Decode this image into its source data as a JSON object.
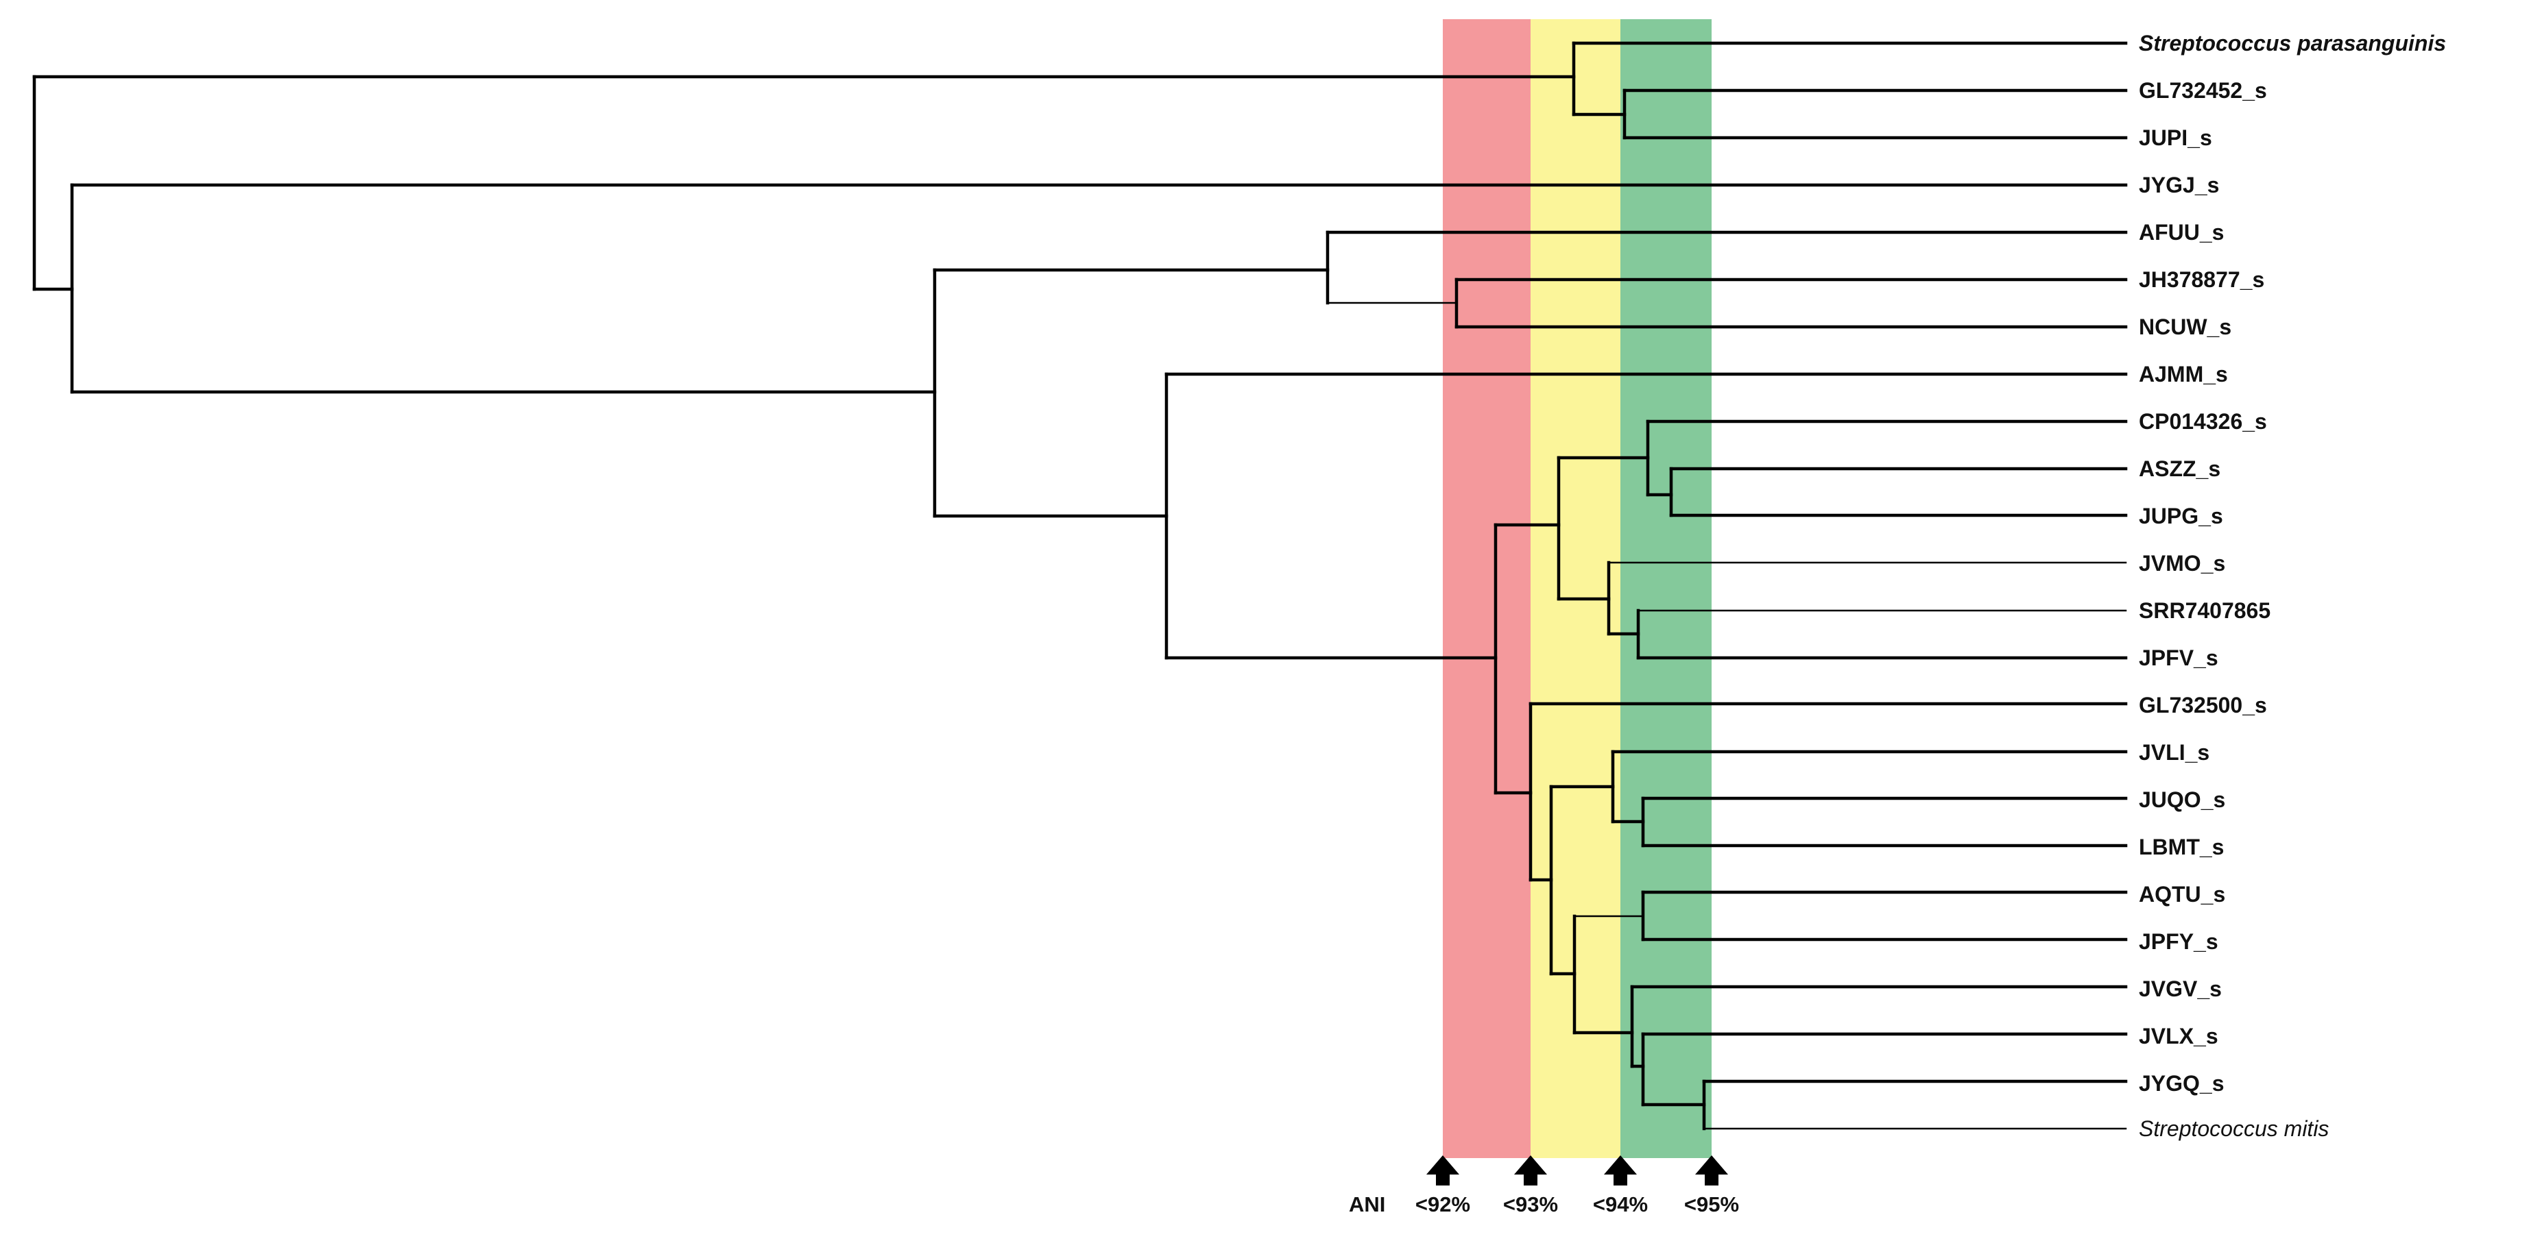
{
  "figure": {
    "type": "phylogenetic-tree",
    "ani_label": "ANI",
    "colors": {
      "band_92": "#f4999c",
      "band_93": "#fbf59a",
      "band_94": "#84c99b",
      "line": "#000000"
    },
    "thresholds": [
      {
        "label": "<92%",
        "color_key": "band_92"
      },
      {
        "label": "<93%",
        "color_key": "band_93"
      },
      {
        "label": "<94%",
        "color_key": "band_94"
      },
      {
        "label": "<95%",
        "color_key": null
      }
    ],
    "taxa": [
      {
        "label": "Streptococcus parasanguinis",
        "italic": true,
        "bold": true
      },
      {
        "label": "GL732452_s"
      },
      {
        "label": "JUPI_s"
      },
      {
        "label": "JYGJ_s"
      },
      {
        "label": "AFUU_s"
      },
      {
        "label": "JH378877_s"
      },
      {
        "label": "NCUW_s"
      },
      {
        "label": "AJMM_s"
      },
      {
        "label": "CP014326_s"
      },
      {
        "label": "ASZZ_s"
      },
      {
        "label": "JUPG_s"
      },
      {
        "label": "JVMO_s"
      },
      {
        "label": "SRR7407865"
      },
      {
        "label": "JPFV_s"
      },
      {
        "label": "GL732500_s"
      },
      {
        "label": "JVLI_s"
      },
      {
        "label": "JUQO_s"
      },
      {
        "label": "LBMT_s"
      },
      {
        "label": "AQTU_s"
      },
      {
        "label": "JPFY_s"
      },
      {
        "label": "JVGV_s"
      },
      {
        "label": "JVLX_s"
      },
      {
        "label": "JYGQ_s"
      },
      {
        "label": "Streptococcus mitis",
        "italic": true,
        "bold": false
      }
    ]
  }
}
